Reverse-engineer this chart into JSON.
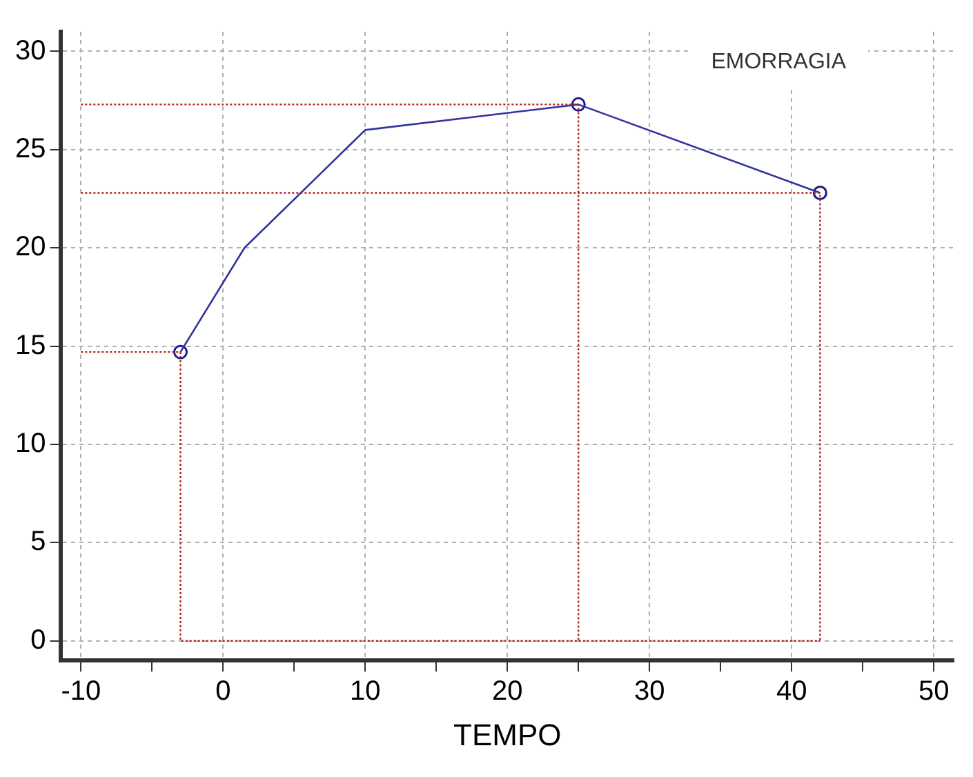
{
  "chart_data": {
    "type": "line",
    "xlabel": "TEMPO",
    "annotations": [
      "EMORRAGIA"
    ],
    "xlim": [
      -11.4,
      51.4
    ],
    "ylim": [
      -1,
      31
    ],
    "xticks": [
      -10,
      {
        "value": -5,
        "label": null
      },
      0,
      {
        "value": 5,
        "label": null
      },
      10,
      {
        "value": 15,
        "label": null
      },
      20,
      {
        "value": 25,
        "label": null
      },
      30,
      {
        "value": 35,
        "label": null
      },
      40,
      {
        "value": 45,
        "label": null
      },
      50
    ],
    "yticks": [
      0,
      5,
      10,
      15,
      20,
      25,
      30
    ],
    "grid": true,
    "legend": false,
    "series": [
      {
        "color": "#b22222",
        "line_style": "dotted",
        "marker": "none",
        "x": [
          -10,
          25,
          25,
          null,
          -10,
          42,
          42,
          null,
          -10,
          -3,
          -3,
          42
        ],
        "values": [
          27.3,
          27.3,
          0,
          null,
          22.8,
          22.8,
          0,
          null,
          14.7,
          14.7,
          0,
          0
        ]
      },
      {
        "color": "#3333a0",
        "line_style": "solid",
        "marker": "none",
        "x": [
          -3,
          1.5,
          10,
          25,
          42
        ],
        "values": [
          14.7,
          20,
          26,
          27.3,
          22.8
        ]
      },
      {
        "type": "scatter",
        "color": "#1a1a8c",
        "marker": "circle",
        "x": [
          -3,
          25,
          42
        ],
        "values": [
          14.7,
          27.3,
          22.8
        ]
      }
    ]
  }
}
